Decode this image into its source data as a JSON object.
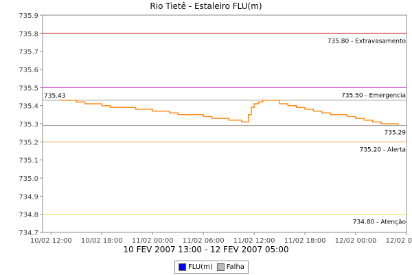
{
  "chart_data": {
    "type": "line",
    "title": "Rio Tietê - Estaleiro FLU(m)",
    "subtitle": "10 FEV 2007 13:00 - 12 FEV 2007 05:00",
    "ylim": [
      734.7,
      735.9
    ],
    "y_ticks": [
      "734.7",
      "734.8",
      "734.9",
      "735.0",
      "735.1",
      "735.2",
      "735.3",
      "735.4",
      "735.5",
      "735.6",
      "735.7",
      "735.8",
      "735.9"
    ],
    "x_range": [
      "2007-02-10T11:00",
      "2007-02-12T06:00"
    ],
    "x_ticks": [
      {
        "t": "2007-02-10T12:00",
        "label": "10/02 12:00"
      },
      {
        "t": "2007-02-10T18:00",
        "label": "10/02 18:00"
      },
      {
        "t": "2007-02-11T00:00",
        "label": "11/02 00:00"
      },
      {
        "t": "2007-02-11T06:00",
        "label": "11/02 06:00"
      },
      {
        "t": "2007-02-11T12:00",
        "label": "11/02 12:00"
      },
      {
        "t": "2007-02-11T18:00",
        "label": "11/02 18:00"
      },
      {
        "t": "2007-02-12T00:00",
        "label": "12/02 00:00"
      },
      {
        "t": "2007-02-12T06:00",
        "label": "12/02 06:00"
      }
    ],
    "reference_lines": [
      {
        "value": 735.8,
        "label": "735.80 - Extravasamento",
        "color": "#d94b4b"
      },
      {
        "value": 735.5,
        "label": "735.50 - Emergencia",
        "color": "#cc44cc"
      },
      {
        "value": 735.2,
        "label": "735.20 - Alerta",
        "color": "#f0a050"
      },
      {
        "value": 734.8,
        "label": "734.80 - Atenção",
        "color": "#e8e040"
      }
    ],
    "extreme_markers": [
      {
        "value": 735.43,
        "label": "735.43",
        "side": "left"
      },
      {
        "value": 735.29,
        "label": "735.29",
        "side": "right"
      }
    ],
    "marker_color": "#999999",
    "series": [
      {
        "name": "FLU(m)",
        "color": "#ff8c1a",
        "points": [
          [
            "2007-02-10T13:00",
            735.43
          ],
          [
            "2007-02-10T14:00",
            735.43
          ],
          [
            "2007-02-10T15:00",
            735.42
          ],
          [
            "2007-02-10T16:00",
            735.41
          ],
          [
            "2007-02-10T17:00",
            735.41
          ],
          [
            "2007-02-10T18:00",
            735.4
          ],
          [
            "2007-02-10T19:00",
            735.39
          ],
          [
            "2007-02-10T20:00",
            735.39
          ],
          [
            "2007-02-10T21:00",
            735.39
          ],
          [
            "2007-02-10T22:00",
            735.38
          ],
          [
            "2007-02-10T23:00",
            735.38
          ],
          [
            "2007-02-11T00:00",
            735.37
          ],
          [
            "2007-02-11T01:00",
            735.37
          ],
          [
            "2007-02-11T02:00",
            735.36
          ],
          [
            "2007-02-11T03:00",
            735.35
          ],
          [
            "2007-02-11T04:00",
            735.35
          ],
          [
            "2007-02-11T05:00",
            735.35
          ],
          [
            "2007-02-11T06:00",
            735.34
          ],
          [
            "2007-02-11T07:00",
            735.33
          ],
          [
            "2007-02-11T08:00",
            735.33
          ],
          [
            "2007-02-11T09:00",
            735.32
          ],
          [
            "2007-02-11T10:00",
            735.32
          ],
          [
            "2007-02-11T10:30",
            735.31
          ],
          [
            "2007-02-11T11:00",
            735.31
          ],
          [
            "2007-02-11T11:20",
            735.35
          ],
          [
            "2007-02-11T11:40",
            735.39
          ],
          [
            "2007-02-11T12:00",
            735.41
          ],
          [
            "2007-02-11T12:30",
            735.42
          ],
          [
            "2007-02-11T13:00",
            735.43
          ],
          [
            "2007-02-11T14:00",
            735.43
          ],
          [
            "2007-02-11T15:00",
            735.41
          ],
          [
            "2007-02-11T16:00",
            735.4
          ],
          [
            "2007-02-11T17:00",
            735.39
          ],
          [
            "2007-02-11T18:00",
            735.38
          ],
          [
            "2007-02-11T19:00",
            735.37
          ],
          [
            "2007-02-11T20:00",
            735.36
          ],
          [
            "2007-02-11T21:00",
            735.35
          ],
          [
            "2007-02-11T22:00",
            735.35
          ],
          [
            "2007-02-11T23:00",
            735.34
          ],
          [
            "2007-02-12T00:00",
            735.33
          ],
          [
            "2007-02-12T01:00",
            735.32
          ],
          [
            "2007-02-12T02:00",
            735.31
          ],
          [
            "2007-02-12T03:00",
            735.3
          ],
          [
            "2007-02-12T04:00",
            735.3
          ],
          [
            "2007-02-12T05:00",
            735.29
          ]
        ]
      }
    ],
    "legend": [
      {
        "label": "FLU(m)",
        "color": "#0000ff"
      },
      {
        "label": "Falha",
        "color": "#b8b8b8"
      }
    ]
  }
}
